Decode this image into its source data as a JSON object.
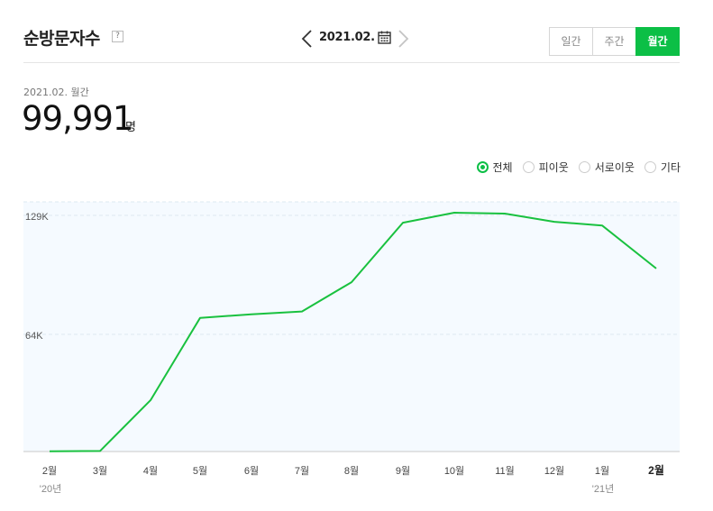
{
  "header": {
    "title": "순방문자수",
    "help_label": "?",
    "current_date": "2021.02."
  },
  "period_tabs": [
    {
      "label": "일간",
      "active": false
    },
    {
      "label": "주간",
      "active": false
    },
    {
      "label": "월간",
      "active": true
    }
  ],
  "summary": {
    "date_label": "2021.02. 월간",
    "value": "99,991",
    "unit": "명"
  },
  "legend": [
    {
      "label": "전체",
      "selected": true
    },
    {
      "label": "피이웃",
      "selected": false
    },
    {
      "label": "서로이웃",
      "selected": false
    },
    {
      "label": "기타",
      "selected": false
    }
  ],
  "colors": {
    "accent": "#0cbf46",
    "line": "#19c13f",
    "plot_bg": "#f5faff",
    "grid": "#dde8f0"
  },
  "chart_data": {
    "type": "line",
    "categories": [
      "2월",
      "3월",
      "4월",
      "5월",
      "6월",
      "7월",
      "8월",
      "9월",
      "10월",
      "11월",
      "12월",
      "1월",
      "2월"
    ],
    "year_labels": [
      "'20년",
      "",
      "",
      "",
      "",
      "",
      "",
      "",
      "",
      "",
      "",
      "'21년",
      ""
    ],
    "series": [
      {
        "name": "전체",
        "values": [
          100,
          300,
          28000,
          73000,
          75000,
          76500,
          92500,
          125000,
          130500,
          130000,
          125500,
          123500,
          99991
        ]
      }
    ],
    "y_ticks": [
      64000,
      129000
    ],
    "y_tick_labels": [
      "64K",
      "129K"
    ],
    "ylim": [
      0,
      129000
    ],
    "grid": true
  }
}
